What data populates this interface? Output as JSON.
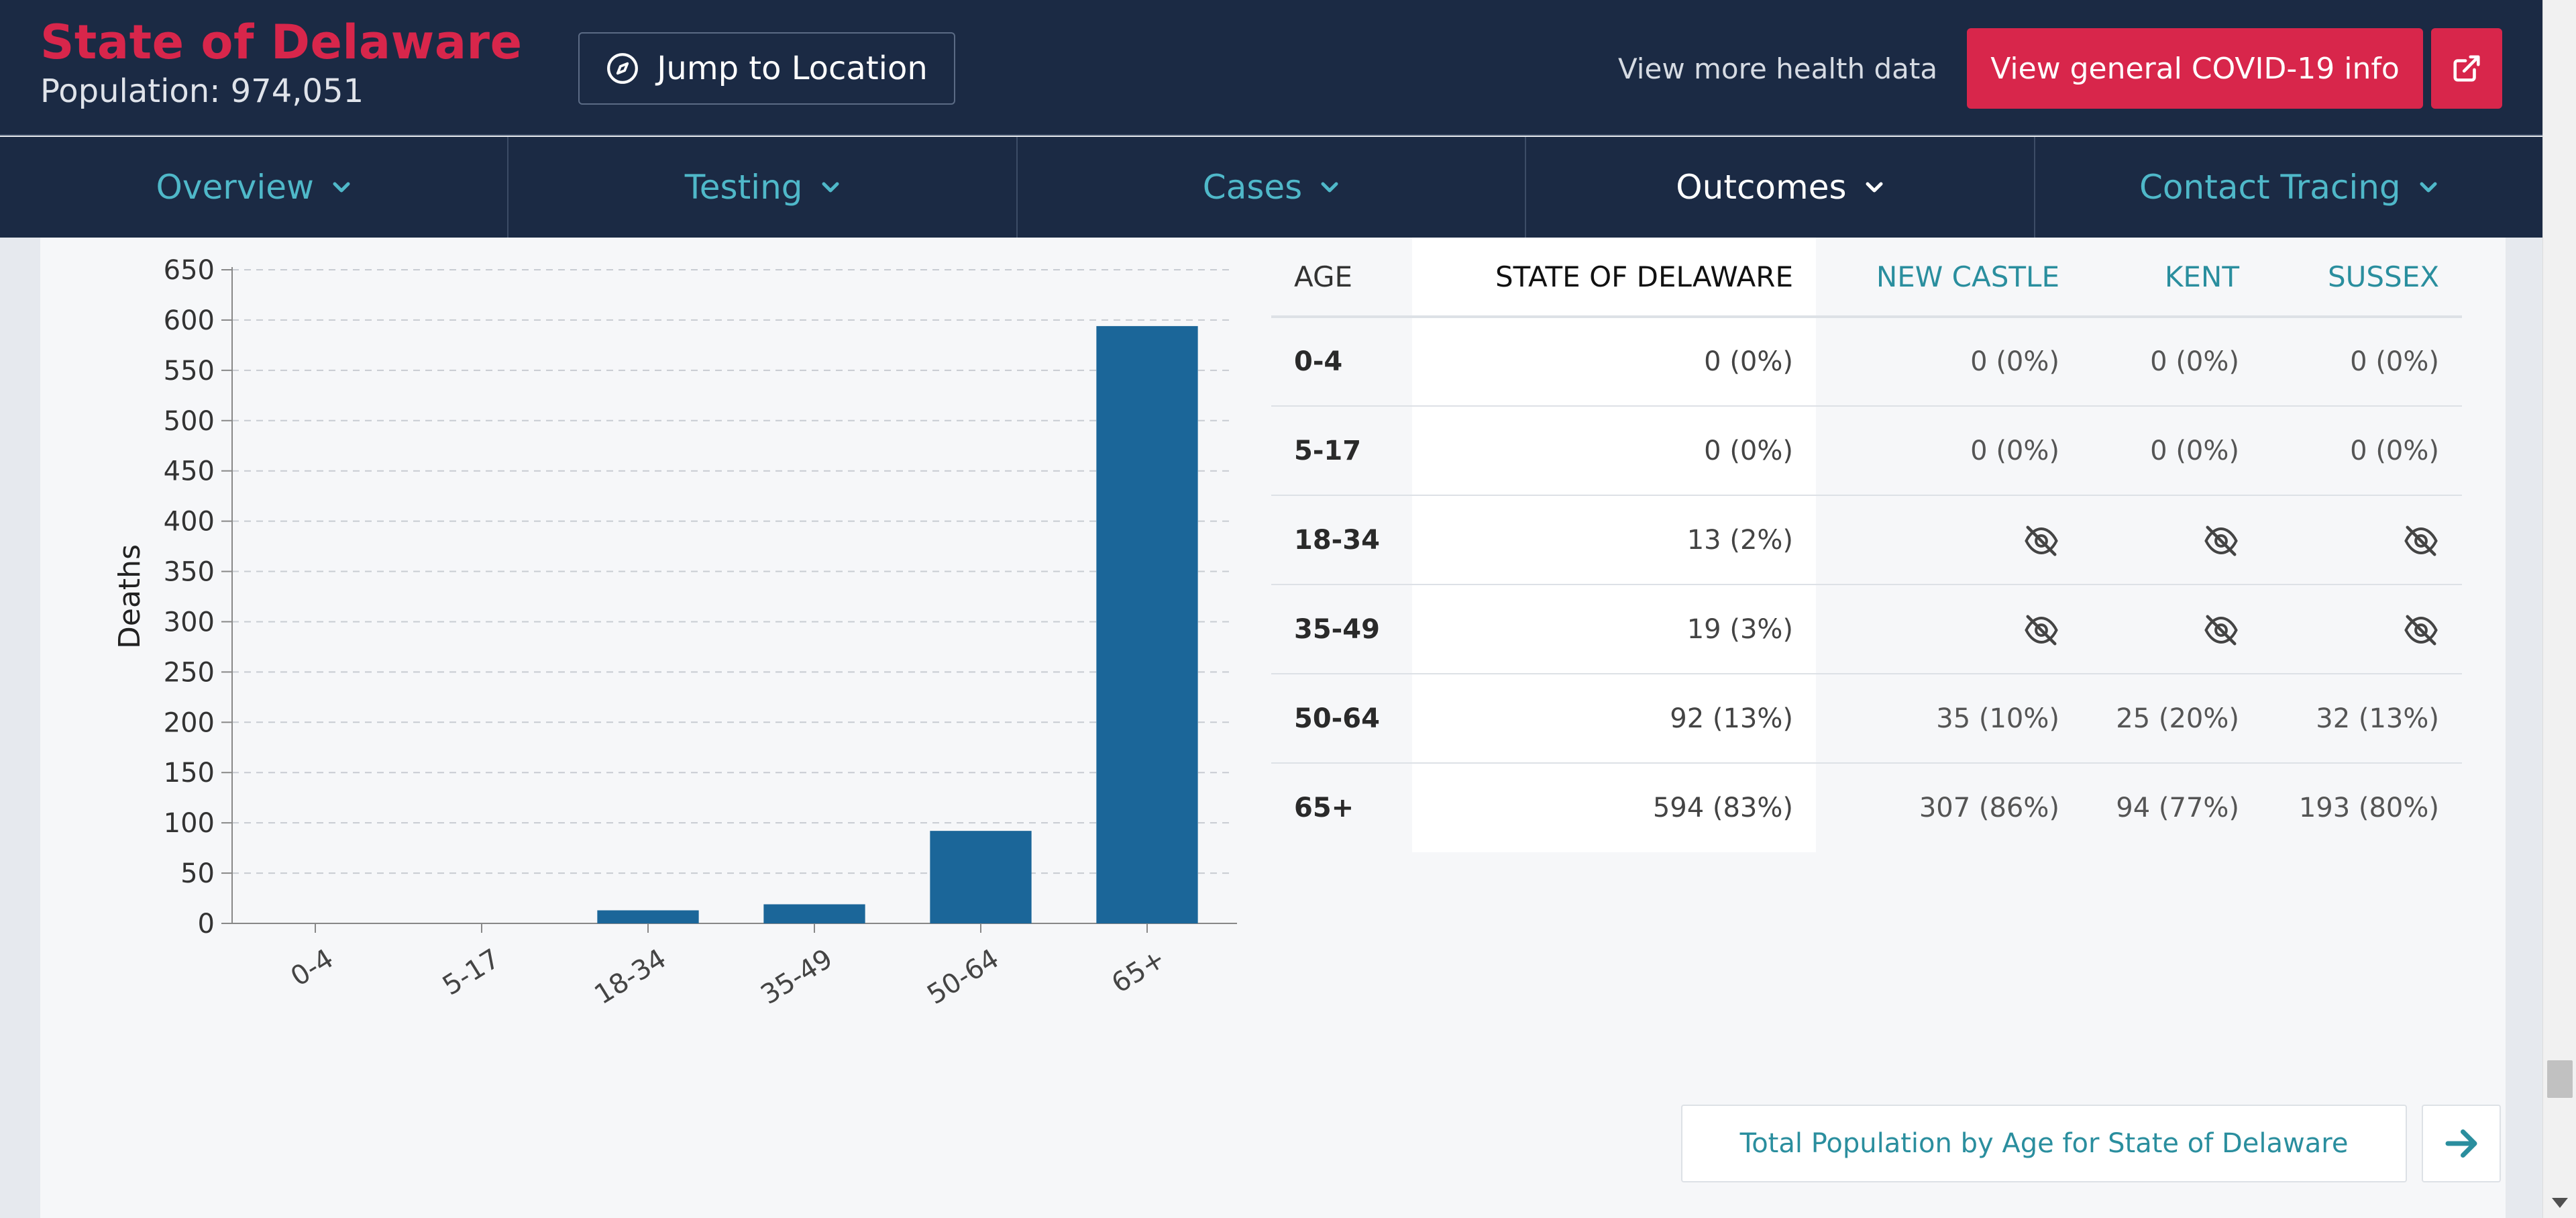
{
  "header": {
    "title": "State of Delaware",
    "population": "Population: 974,051",
    "jump_label": "Jump to Location",
    "health_link": "View more health data",
    "covid_label": "View general COVID-19 info"
  },
  "colors": {
    "brand_red": "#d8264b",
    "navy": "#1b2a44",
    "teal": "#2a8e9e",
    "bar": "#1b6699"
  },
  "nav": {
    "items": [
      {
        "label": "Overview",
        "icon": "chevron-down-icon"
      },
      {
        "label": "Testing",
        "icon": "chevron-down-icon"
      },
      {
        "label": "Cases",
        "icon": "chevron-down-icon"
      },
      {
        "label": "Outcomes",
        "icon": "chevron-down-icon"
      },
      {
        "label": "Contact Tracing",
        "icon": "chevron-down-icon"
      }
    ],
    "active_index": 3
  },
  "chart_data": {
    "type": "bar",
    "categories": [
      "0-4",
      "5-17",
      "18-34",
      "35-49",
      "50-64",
      "65+"
    ],
    "values": [
      0,
      0,
      13,
      19,
      92,
      594
    ],
    "title": "",
    "xlabel": "",
    "ylabel": "Deaths",
    "ylim": [
      0,
      650
    ],
    "yticks": [
      0,
      50,
      100,
      150,
      200,
      250,
      300,
      350,
      400,
      450,
      500,
      550,
      600,
      650
    ],
    "grid": true
  },
  "table": {
    "headers": [
      "AGE",
      "STATE OF DELAWARE",
      "NEW CASTLE",
      "KENT",
      "SUSSEX"
    ],
    "rows": [
      {
        "age": "0-4",
        "state": "0 (0%)",
        "new_castle": "0 (0%)",
        "kent": "0 (0%)",
        "sussex": "0 (0%)"
      },
      {
        "age": "5-17",
        "state": "0 (0%)",
        "new_castle": "0 (0%)",
        "kent": "0 (0%)",
        "sussex": "0 (0%)"
      },
      {
        "age": "18-34",
        "state": "13 (2%)",
        "new_castle": "",
        "kent": "",
        "sussex": ""
      },
      {
        "age": "35-49",
        "state": "19 (3%)",
        "new_castle": "",
        "kent": "",
        "sussex": ""
      },
      {
        "age": "50-64",
        "state": "92 (13%)",
        "new_castle": "35 (10%)",
        "kent": "25 (20%)",
        "sussex": "32 (13%)"
      },
      {
        "age": "65+",
        "state": "594 (83%)",
        "new_castle": "307 (86%)",
        "kent": "94 (77%)",
        "sussex": "193 (80%)"
      }
    ],
    "hidden_icon": "eye-slash-icon"
  },
  "footer": {
    "population_link": "Total Population by Age for State of Delaware"
  }
}
